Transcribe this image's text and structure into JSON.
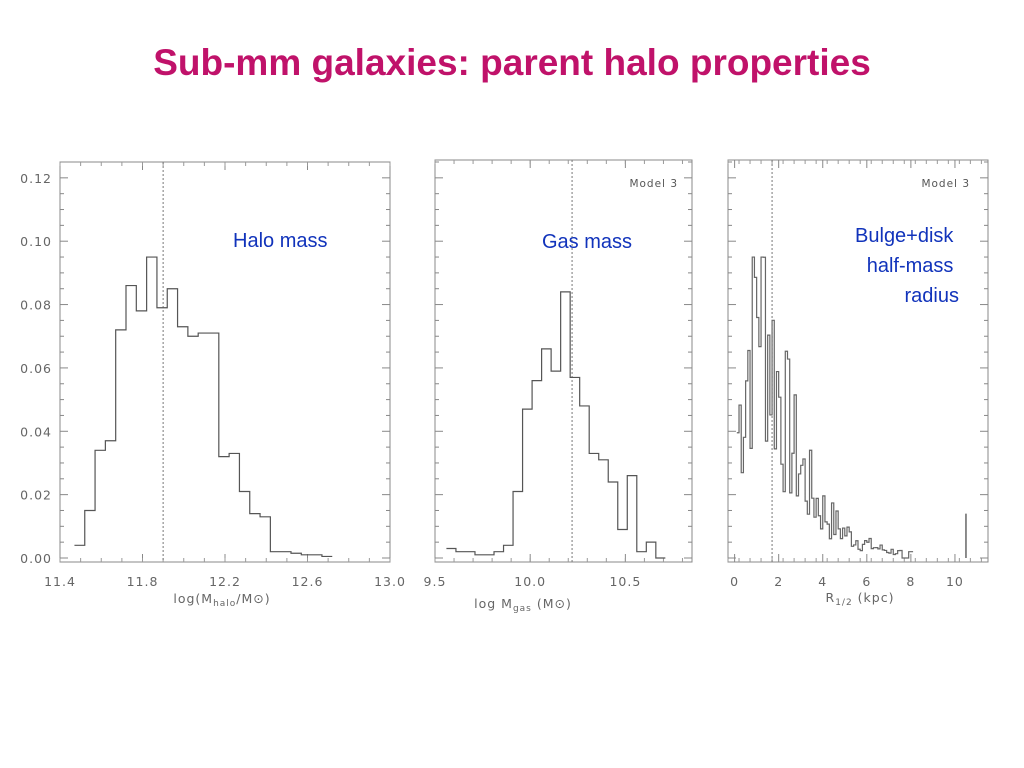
{
  "slide": {
    "title": "Sub-mm galaxies: parent halo properties"
  },
  "chart_data": [
    {
      "type": "histogram",
      "annotation": "Halo mass",
      "xlabel": "log(M_halo/M_⊙)",
      "xlabel_parts": {
        "pre": "log(M",
        "sub": "halo",
        "post": "/M⊙)"
      },
      "xlim": [
        11.4,
        13.0
      ],
      "ylim": [
        0.0,
        0.125
      ],
      "xticks": [
        "11.4",
        "11.8",
        "12.2",
        "12.6",
        "13.0"
      ],
      "yticks": [
        "0.00",
        "0.02",
        "0.04",
        "0.06",
        "0.08",
        "0.10",
        "0.12"
      ],
      "median_line": 11.9,
      "bin_width": 0.05,
      "bins_start": 11.47,
      "values": [
        0.004,
        0.015,
        0.034,
        0.037,
        0.072,
        0.086,
        0.078,
        0.095,
        0.079,
        0.085,
        0.073,
        0.07,
        0.071,
        0.071,
        0.032,
        0.033,
        0.021,
        0.014,
        0.013,
        0.002,
        0.002,
        0.0015,
        0.001,
        0.001,
        0.0005
      ]
    },
    {
      "type": "histogram",
      "annotation": "Gas mass",
      "model_label": "Model 3",
      "xlabel": "log M_gas (M_⊙)",
      "xlabel_parts": {
        "pre": "log M",
        "sub": "gas",
        "post": " (M⊙)"
      },
      "xlim": [
        9.5,
        10.85
      ],
      "ylim": [
        0.0,
        0.125
      ],
      "xticks": [
        "9.5",
        "10.0",
        "10.5"
      ],
      "median_line": 10.22,
      "bin_width": 0.05,
      "bins_start": 9.56,
      "values": [
        0.003,
        0.002,
        0.002,
        0.001,
        0.001,
        0.002,
        0.004,
        0.021,
        0.047,
        0.056,
        0.066,
        0.059,
        0.084,
        0.057,
        0.048,
        0.033,
        0.031,
        0.024,
        0.009,
        0.026,
        0.002,
        0.005,
        0.0
      ]
    },
    {
      "type": "histogram",
      "annotation_lines": [
        "Bulge+disk",
        "half-mass",
        "radius"
      ],
      "model_label": "Model 3",
      "xlabel": "R_1/2 (kpc)",
      "xlabel_parts": {
        "pre": "R",
        "sub": "1/2",
        "post": " (kpc)"
      },
      "xlim": [
        -0.3,
        11.5
      ],
      "ylim": [
        0.0,
        0.125
      ],
      "xticks": [
        "0",
        "2",
        "4",
        "6",
        "8",
        "10"
      ],
      "median_line": 1.7,
      "spike": {
        "x": 10.5,
        "value": 0.014
      }
    }
  ]
}
